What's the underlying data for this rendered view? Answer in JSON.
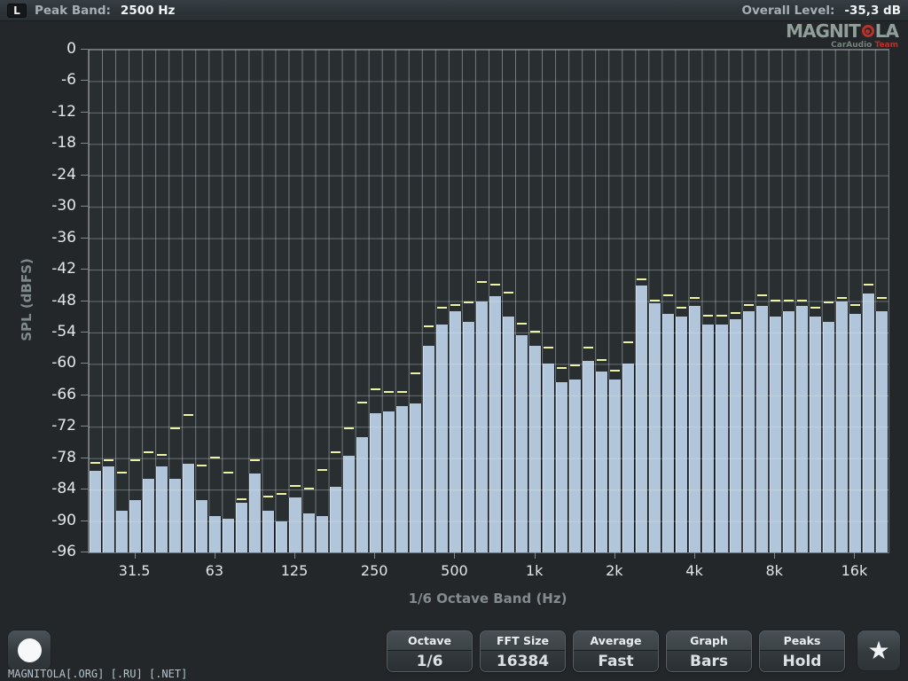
{
  "header": {
    "channel": "L",
    "peak_band_label": "Peak Band:",
    "peak_band_value": "2500 Hz",
    "overall_label": "Overall Level:",
    "overall_value": "-35,3 dB"
  },
  "logo": {
    "text_left": "MAGNIT",
    "text_right": "LA",
    "subtitle_gray": "CarAudio",
    "subtitle_red": "Team"
  },
  "chart_data": {
    "type": "bar",
    "title": "",
    "xlabel": "1/6 Octave Band (Hz)",
    "ylabel": "SPL (dBFS)",
    "ylim": [
      -96,
      0
    ],
    "ytick_step": 6,
    "yticks": [
      0,
      -6,
      -12,
      -18,
      -24,
      -30,
      -36,
      -42,
      -48,
      -54,
      -60,
      -66,
      -72,
      -78,
      -84,
      -90,
      -96
    ],
    "xticks": [
      {
        "label": "31.5",
        "band": 3
      },
      {
        "label": "63",
        "band": 9
      },
      {
        "label": "125",
        "band": 15
      },
      {
        "label": "250",
        "band": 21
      },
      {
        "label": "500",
        "band": 27
      },
      {
        "label": "1k",
        "band": 33
      },
      {
        "label": "2k",
        "band": 39
      },
      {
        "label": "4k",
        "band": 45
      },
      {
        "label": "8k",
        "band": 51
      },
      {
        "label": "16k",
        "band": 57
      }
    ],
    "grid": true,
    "legend": "none",
    "categories": [
      "22.4",
      "25",
      "28",
      "31.5",
      "35.5",
      "40",
      "45",
      "50",
      "56",
      "63",
      "71",
      "80",
      "90",
      "100",
      "112",
      "125",
      "140",
      "160",
      "180",
      "200",
      "224",
      "250",
      "280",
      "315",
      "355",
      "400",
      "450",
      "500",
      "560",
      "630",
      "710",
      "800",
      "900",
      "1000",
      "1120",
      "1250",
      "1400",
      "1600",
      "1800",
      "2000",
      "2240",
      "2500",
      "2800",
      "3150",
      "3550",
      "4000",
      "4500",
      "5000",
      "5600",
      "6300",
      "7100",
      "8000",
      "9000",
      "10000",
      "11200",
      "12500",
      "14000",
      "16000",
      "18000",
      "20000"
    ],
    "series": [
      {
        "name": "level_dbfs",
        "values": [
          -80.5,
          -79.5,
          -88,
          -86,
          -82,
          -79.5,
          -82,
          -79,
          -86,
          -89,
          -89.5,
          -86.5,
          -81,
          -88,
          -90,
          -85.5,
          -88.5,
          -89,
          -83.5,
          -77.5,
          -74,
          -69.5,
          -69,
          -68,
          -67.5,
          -56.5,
          -52.5,
          -50,
          -52,
          -48,
          -47,
          -51,
          -54.5,
          -56.5,
          -60,
          -63.5,
          -63,
          -59.5,
          -61.5,
          -63,
          -60,
          -45,
          -48.5,
          -50.5,
          -51,
          -49,
          -52.5,
          -52.5,
          -51.5,
          -50,
          -49,
          -51,
          -50,
          -49,
          -51,
          -52,
          -48,
          -50.5,
          -46.5,
          -50
        ]
      },
      {
        "name": "peak_hold_dbfs",
        "values": [
          -79,
          -78.5,
          -81,
          -78.5,
          -77,
          -77.5,
          -72.5,
          -70,
          -79.5,
          -78,
          -81,
          -86,
          -78.5,
          -85.5,
          -85,
          -83.5,
          -84,
          -80.5,
          -77,
          -72.5,
          -67.5,
          -65,
          -65.5,
          -65.5,
          -62,
          -53,
          -49.5,
          -49,
          -48.5,
          -44.5,
          -45,
          -46.5,
          -52.5,
          -54,
          -57,
          -61,
          -60.5,
          -57,
          -59.5,
          -61.5,
          -56,
          -44,
          -48,
          -47,
          -49.5,
          -47.5,
          -51,
          -51,
          -50.5,
          -49,
          -47,
          -48,
          -48,
          -48,
          -49.5,
          -48.5,
          -47.5,
          -49,
          -45,
          -47.5
        ]
      }
    ]
  },
  "footer": {
    "site_text": "MAGNITOLA[.ORG] [.RU] [.NET]",
    "star_glyph": "★",
    "controls": [
      {
        "label": "Octave",
        "value": "1/6"
      },
      {
        "label": "FFT Size",
        "value": "16384"
      },
      {
        "label": "Average",
        "value": "Fast"
      },
      {
        "label": "Graph",
        "value": "Bars"
      },
      {
        "label": "Peaks",
        "value": "Hold"
      }
    ]
  },
  "colors": {
    "bar_fill": "#b1c6db",
    "peak_marker": "#ecf3a3",
    "plot_background": "#292e31",
    "page_background": "#23272a",
    "accent_red": "#b5332b"
  }
}
